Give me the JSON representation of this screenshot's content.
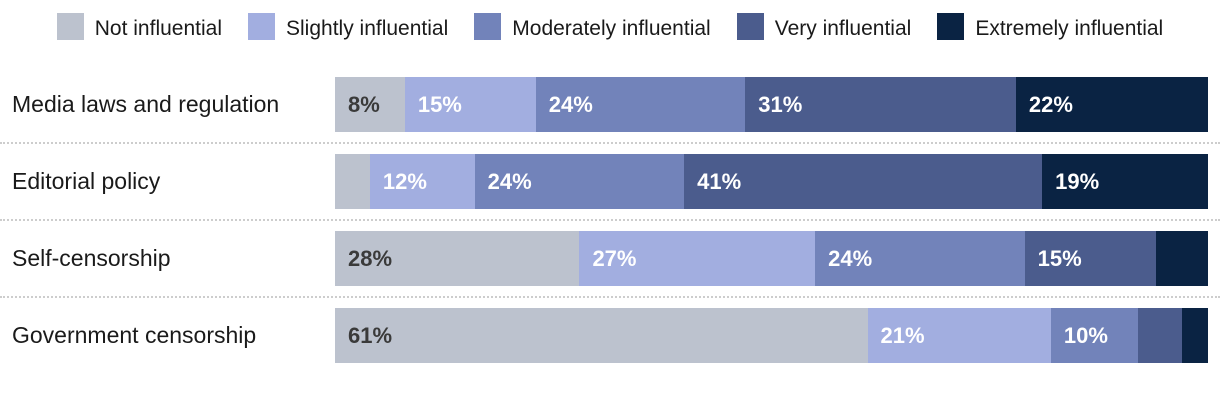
{
  "chart_data": {
    "type": "bar",
    "variant": "horizontal-stacked",
    "title": "",
    "xlabel": "",
    "ylabel": "",
    "xlim": [
      0,
      100
    ],
    "grid": false,
    "legend_position": "top-center",
    "value_unit": "%",
    "legend": [
      {
        "label": "Not influential",
        "color": "#bcc2ce",
        "label_color": "#3a3a3a"
      },
      {
        "label": "Slightly influential",
        "color": "#a2aee0",
        "label_color": "#ffffff"
      },
      {
        "label": "Moderately influential",
        "color": "#7283ba",
        "label_color": "#ffffff"
      },
      {
        "label": "Very influential",
        "color": "#4b5c8d",
        "label_color": "#ffffff"
      },
      {
        "label": "Extremely influential",
        "color": "#0a2343",
        "label_color": "#ffffff"
      }
    ],
    "categories": [
      "Media laws and regulation",
      "Editorial policy",
      "Self-censorship",
      "Government censorship"
    ],
    "rows": [
      {
        "category": "Media laws and regulation",
        "segments": [
          {
            "value": 8,
            "label": "8%"
          },
          {
            "value": 15,
            "label": "15%"
          },
          {
            "value": 24,
            "label": "24%"
          },
          {
            "value": 31,
            "label": "31%"
          },
          {
            "value": 22,
            "label": "22%"
          }
        ]
      },
      {
        "category": "Editorial policy",
        "segments": [
          {
            "value": 4,
            "label": ""
          },
          {
            "value": 12,
            "label": "12%"
          },
          {
            "value": 24,
            "label": "24%"
          },
          {
            "value": 41,
            "label": "41%"
          },
          {
            "value": 19,
            "label": "19%"
          }
        ]
      },
      {
        "category": "Self-censorship",
        "segments": [
          {
            "value": 28,
            "label": "28%"
          },
          {
            "value": 27,
            "label": "27%"
          },
          {
            "value": 24,
            "label": "24%"
          },
          {
            "value": 15,
            "label": "15%"
          },
          {
            "value": 6,
            "label": ""
          }
        ]
      },
      {
        "category": "Government censorship",
        "segments": [
          {
            "value": 61,
            "label": "61%"
          },
          {
            "value": 21,
            "label": "21%"
          },
          {
            "value": 10,
            "label": "10%"
          },
          {
            "value": 5,
            "label": ""
          },
          {
            "value": 3,
            "label": ""
          }
        ]
      }
    ]
  },
  "colors": {
    "background": "#ffffff",
    "separator": "#cdcdcd",
    "category_text": "#1a1a1a",
    "segment_label_dark": "#3a3a3a",
    "segment_label_light": "#ffffff"
  }
}
